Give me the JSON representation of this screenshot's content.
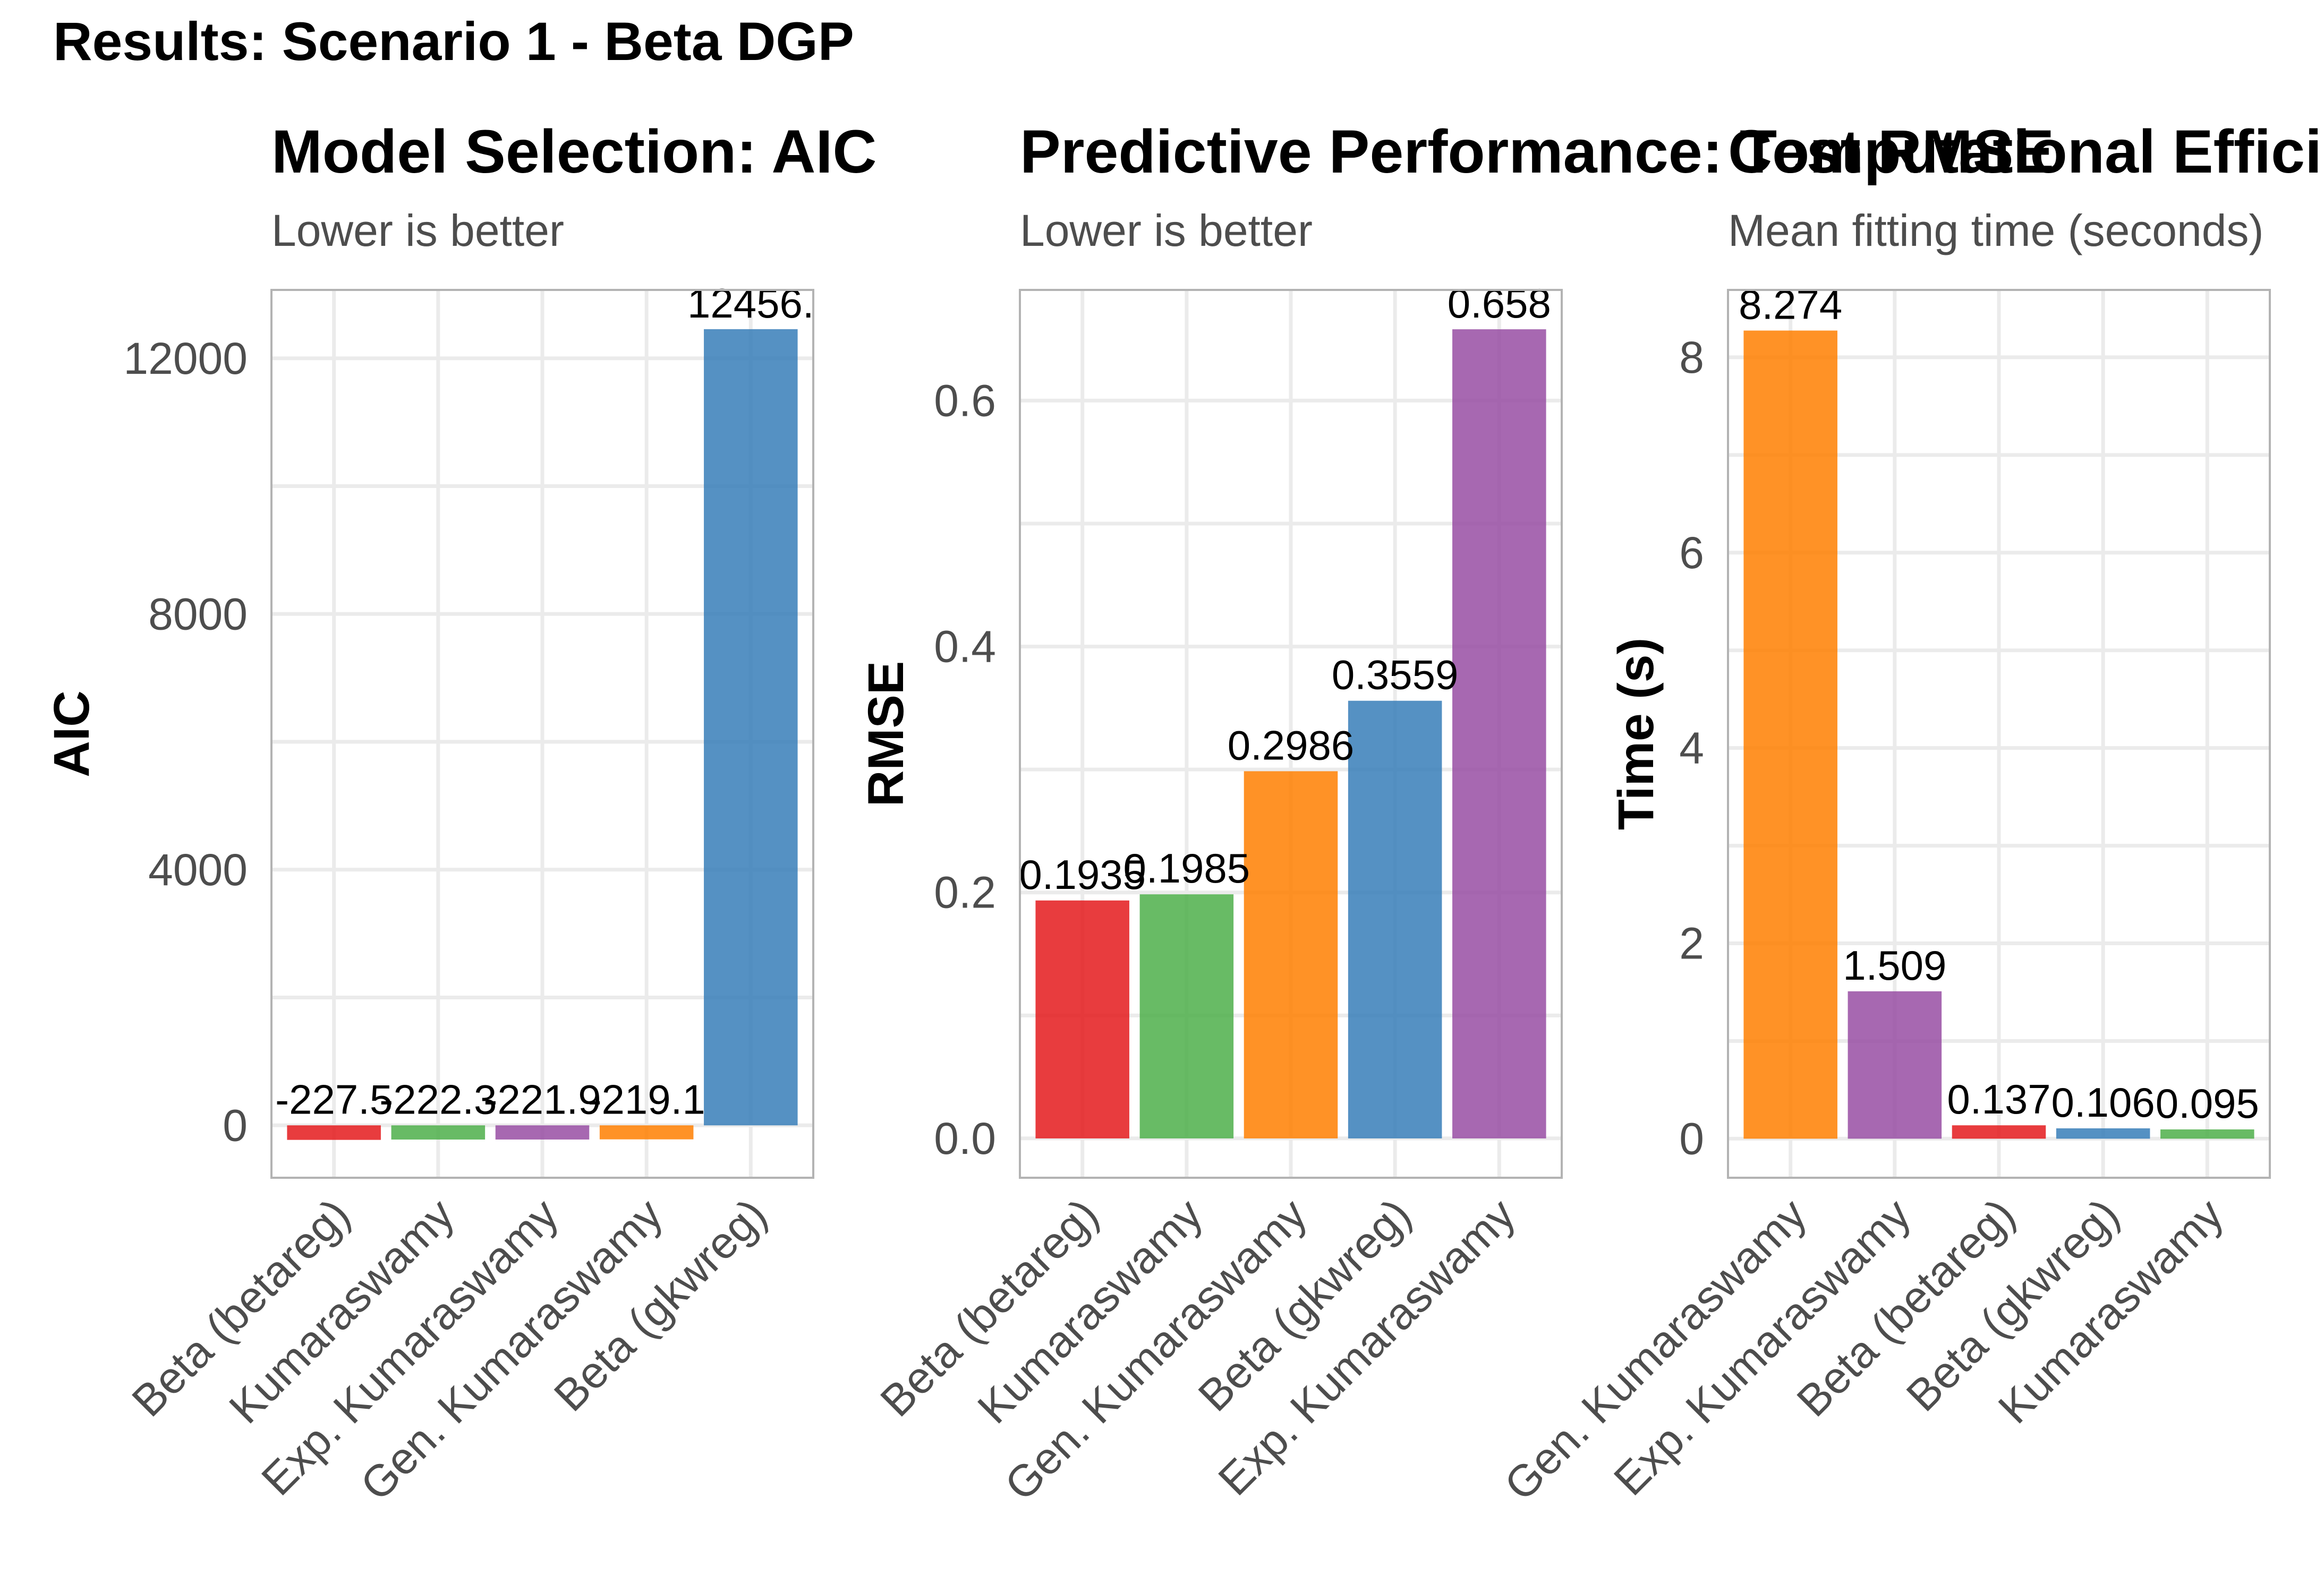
{
  "title": "Results: Scenario 1 - Beta DGP",
  "colors": {
    "Beta (betareg)": "#E41A1C",
    "Kumaraswamy": "#4DAF4A",
    "Exp. Kumaraswamy": "#984EA3",
    "Gen. Kumaraswamy": "#FF7F00",
    "Beta (gkwreg)": "#377EB8"
  },
  "chart_data": [
    {
      "type": "bar",
      "title": "Model Selection: AIC",
      "subtitle": "Lower is better",
      "xlabel": "",
      "ylabel": "AIC",
      "categories": [
        "Beta (betareg)",
        "Kumaraswamy",
        "Exp. Kumaraswamy",
        "Gen. Kumaraswamy",
        "Beta (gkwreg)"
      ],
      "values": [
        -227.5,
        -222.3,
        -221.9,
        -219.1,
        12456
      ],
      "labels": [
        "-227.5",
        "-222.3",
        "-221.9",
        "-219.1",
        "12456."
      ],
      "ylim": [
        -820,
        13070
      ],
      "yticks": [
        0,
        4000,
        8000,
        12000
      ],
      "grid": true
    },
    {
      "type": "bar",
      "title": "Predictive Performance: Test RMSE",
      "subtitle": "Lower is better",
      "xlabel": "",
      "ylabel": "RMSE",
      "categories": [
        "Beta (betareg)",
        "Kumaraswamy",
        "Gen. Kumaraswamy",
        "Beta (gkwreg)",
        "Exp. Kumaraswamy"
      ],
      "values": [
        0.1935,
        0.1985,
        0.2986,
        0.3559,
        0.658
      ],
      "labels": [
        "0.1935",
        "0.1985",
        "0.2986",
        "0.3559",
        "0.658"
      ],
      "ylim": [
        -0.032,
        0.69
      ],
      "yticks": [
        0.0,
        0.2,
        0.4,
        0.6
      ],
      "grid": true
    },
    {
      "type": "bar",
      "title": "Computational Efficiency",
      "subtitle": "Mean fitting time (seconds)",
      "xlabel": "",
      "ylabel": "Time (s)",
      "categories": [
        "Gen. Kumaraswamy",
        "Exp. Kumaraswamy",
        "Beta (betareg)",
        "Beta (gkwreg)",
        "Kumaraswamy"
      ],
      "values": [
        8.274,
        1.509,
        0.137,
        0.106,
        0.095
      ],
      "labels": [
        "8.274",
        "1.509",
        "0.137",
        "0.106",
        "0.095"
      ],
      "ylim": [
        -0.4,
        8.69
      ],
      "yticks": [
        0,
        2,
        4,
        6,
        8
      ],
      "grid": true
    }
  ]
}
